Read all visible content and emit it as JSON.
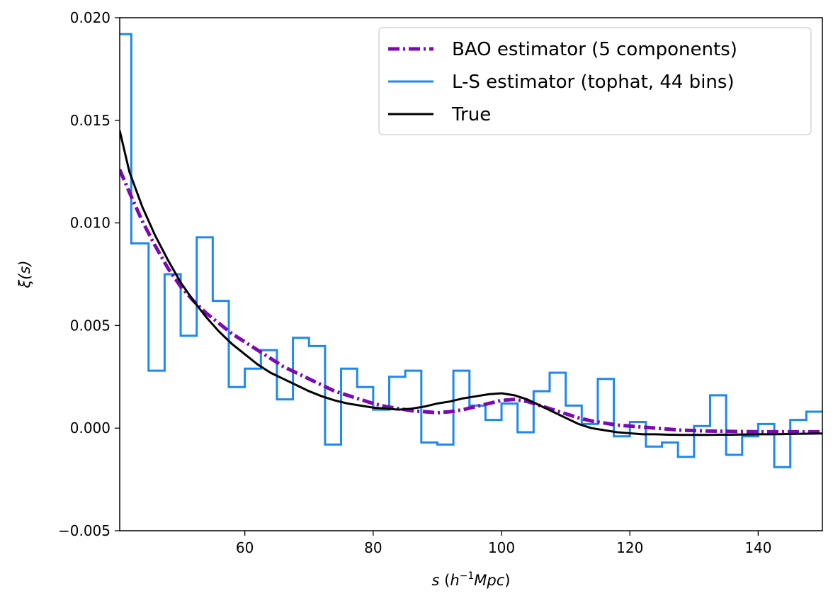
{
  "chart_data": {
    "type": "line",
    "title": "",
    "xlabel": "s (h⁻¹Mpc)",
    "xlabel_parts": {
      "var": "s",
      "open": " (",
      "h": "h",
      "exp": "−1",
      "mpc": "Mpc",
      "close": ")"
    },
    "ylabel": "ξ(s)",
    "xlim": [
      40.5,
      150
    ],
    "ylim": [
      -0.005,
      0.02
    ],
    "x_ticks": [
      60,
      80,
      100,
      120,
      140
    ],
    "x_tick_labels": [
      "60",
      "80",
      "100",
      "120",
      "140"
    ],
    "y_ticks": [
      -0.005,
      0.0,
      0.005,
      0.01,
      0.015,
      0.02
    ],
    "y_tick_labels": [
      "−0.005",
      "0.000",
      "0.005",
      "0.010",
      "0.015",
      "0.020"
    ],
    "grid": false,
    "legend_position": "top-right",
    "series": [
      {
        "name": "BAO estimator (5 components)",
        "color": "#7b0ab1",
        "style": "dashdot",
        "x": [
          40.5,
          42,
          44,
          46,
          48,
          50,
          52,
          54,
          56,
          58,
          60,
          62,
          64,
          66,
          68,
          70,
          72,
          74,
          76,
          78,
          80,
          82,
          84,
          86,
          88,
          90,
          92,
          94,
          96,
          98,
          100,
          102,
          104,
          106,
          108,
          110,
          112,
          114,
          116,
          118,
          120,
          122,
          124,
          126,
          128,
          130,
          132,
          134,
          136,
          138,
          140,
          142,
          144,
          146,
          148,
          150
        ],
        "y": [
          0.0126,
          0.0115,
          0.0101,
          0.0089,
          0.0078,
          0.0069,
          0.0062,
          0.0056,
          0.0051,
          0.0046,
          0.0042,
          0.0038,
          0.0034,
          0.003,
          0.0027,
          0.0024,
          0.0021,
          0.0018,
          0.0016,
          0.0014,
          0.0012,
          0.00105,
          0.00095,
          0.00085,
          0.0008,
          0.00075,
          0.0008,
          0.0009,
          0.00105,
          0.0012,
          0.00135,
          0.0014,
          0.0013,
          0.0011,
          0.0009,
          0.0007,
          0.0005,
          0.00035,
          0.00025,
          0.00015,
          0.0001,
          5e-05,
          0.0,
          -5e-05,
          -0.0001,
          -0.00012,
          -0.00014,
          -0.00015,
          -0.00016,
          -0.00017,
          -0.00018,
          -0.00018,
          -0.00018,
          -0.00018,
          -0.00018,
          -0.00018
        ]
      },
      {
        "name": "L-S estimator (tophat, 44 bins)",
        "color": "#1e88f0",
        "style": "steps",
        "edges": [
          40.5,
          42.3,
          45.0,
          47.5,
          50.0,
          52.5,
          55.0,
          57.5,
          60.0,
          62.5,
          65.0,
          67.5,
          70.0,
          72.5,
          75.0,
          77.5,
          80.0,
          82.5,
          85.0,
          87.5,
          90.0,
          92.5,
          95.0,
          97.5,
          100.0,
          102.5,
          105.0,
          107.5,
          110.0,
          112.5,
          115.0,
          117.5,
          120.0,
          122.5,
          125.0,
          127.5,
          130.0,
          132.5,
          135.0,
          137.5,
          140.0,
          142.5,
          145.0,
          147.5,
          150.0
        ],
        "values": [
          0.0192,
          0.009,
          0.0028,
          0.0075,
          0.0045,
          0.0093,
          0.0062,
          0.002,
          0.0029,
          0.0038,
          0.0014,
          0.0044,
          0.004,
          -0.0008,
          0.0029,
          0.002,
          0.0009,
          0.0025,
          0.0028,
          -0.0007,
          -0.0008,
          0.0028,
          0.0011,
          0.0004,
          0.0012,
          -0.0002,
          0.0018,
          0.0027,
          0.0011,
          0.0002,
          0.0024,
          -0.0004,
          0.0003,
          -0.0009,
          -0.0007,
          -0.0014,
          0.0001,
          0.0016,
          -0.0013,
          -0.0004,
          0.0002,
          -0.0019,
          0.0004,
          0.0008
        ]
      },
      {
        "name": "True",
        "color": "#000000",
        "style": "solid",
        "x": [
          40.5,
          42,
          44,
          46,
          48,
          50,
          52,
          54,
          56,
          58,
          60,
          62,
          64,
          66,
          68,
          70,
          72,
          74,
          76,
          78,
          80,
          82,
          84,
          86,
          88,
          90,
          92,
          94,
          96,
          98,
          100,
          102,
          104,
          106,
          108,
          110,
          112,
          114,
          116,
          118,
          120,
          122,
          124,
          126,
          128,
          130,
          132,
          134,
          136,
          138,
          140,
          142,
          144,
          146,
          148,
          150
        ],
        "y": [
          0.0145,
          0.0125,
          0.0108,
          0.0094,
          0.0082,
          0.0071,
          0.0062,
          0.0054,
          0.0047,
          0.0041,
          0.0036,
          0.0031,
          0.0027,
          0.0024,
          0.0021,
          0.0018,
          0.00155,
          0.00135,
          0.0012,
          0.0011,
          0.001,
          0.00095,
          0.0009,
          0.00095,
          0.00105,
          0.0012,
          0.0013,
          0.00145,
          0.00155,
          0.00165,
          0.0017,
          0.0016,
          0.0014,
          0.0011,
          0.0008,
          0.0005,
          0.0002,
          0.0,
          -0.0001,
          -0.0002,
          -0.00025,
          -0.0003,
          -0.0003,
          -0.00032,
          -0.00033,
          -0.00033,
          -0.00033,
          -0.00032,
          -0.00032,
          -0.00031,
          -0.0003,
          -0.0003,
          -0.00029,
          -0.00028,
          -0.00027,
          -0.00026
        ]
      }
    ]
  }
}
